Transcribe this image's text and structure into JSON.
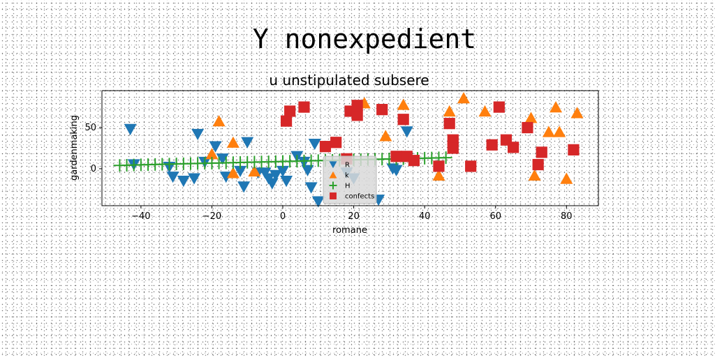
{
  "suptitle": "Y nonexpedient",
  "chart_data": {
    "type": "scatter",
    "title": "u unstipulated subsere",
    "xlabel": "romane",
    "ylabel": "gardenmaking",
    "xlim": [
      -51,
      89
    ],
    "ylim": [
      -45,
      95
    ],
    "xticks": [
      -40,
      -20,
      0,
      20,
      40,
      60,
      80
    ],
    "yticks": [
      0,
      50
    ],
    "grid": false,
    "legend_placement": "lower-center",
    "series": [
      {
        "name": "R",
        "marker": "triangle-down",
        "color": "#1f77b4",
        "x": [
          -43,
          -42,
          -32,
          -31,
          -28,
          -25,
          -24,
          -22,
          -19,
          -17,
          -16,
          -12,
          -11,
          -10,
          -7,
          -5,
          -4,
          -3,
          -2,
          0,
          1,
          4,
          6,
          7,
          8,
          9,
          10,
          18,
          20,
          27,
          31,
          32,
          35
        ],
        "y": [
          48,
          5,
          2,
          -10,
          -15,
          -12,
          42,
          8,
          27,
          12,
          -10,
          -3,
          -22,
          32,
          -5,
          -5,
          -12,
          -18,
          -8,
          -3,
          -15,
          15,
          8,
          -2,
          -23,
          30,
          -40,
          -5,
          -12,
          -38,
          0,
          -2,
          45
        ]
      },
      {
        "name": "k",
        "marker": "triangle-up",
        "color": "#ff7f0e",
        "x": [
          -20,
          -18,
          -14,
          -14,
          -8,
          23,
          29,
          34,
          44,
          47,
          51,
          57,
          70,
          71,
          75,
          77,
          78,
          80,
          83
        ],
        "y": [
          18,
          58,
          32,
          -5,
          -3,
          80,
          40,
          78,
          -8,
          70,
          86,
          70,
          62,
          -8,
          45,
          75,
          45,
          -12,
          68
        ]
      },
      {
        "name": "H",
        "marker": "plus",
        "color": "#2ca02c",
        "x": [
          -46,
          -44,
          -42,
          -40,
          -38,
          -36,
          -34,
          -32,
          -30,
          -28,
          -26,
          -24,
          -22,
          -20,
          -18,
          -16,
          -14,
          -12,
          -10,
          -8,
          -6,
          -4,
          -2,
          0,
          2,
          4,
          6,
          8,
          10,
          12,
          14,
          16,
          18,
          20,
          22,
          24,
          26,
          28,
          30,
          32,
          34,
          36,
          38,
          40,
          42,
          44,
          46
        ],
        "y": [
          4.0,
          4.2,
          4.5,
          4.7,
          5.0,
          5.2,
          5.4,
          5.6,
          5.8,
          6.0,
          6.2,
          6.4,
          6.6,
          6.8,
          7.0,
          7.2,
          7.4,
          7.6,
          7.8,
          8.0,
          8.2,
          8.4,
          8.6,
          8.8,
          9.0,
          9.2,
          9.4,
          9.6,
          9.8,
          10.0,
          10.2,
          10.4,
          10.6,
          10.8,
          11.0,
          11.2,
          11.4,
          11.6,
          11.8,
          12.0,
          12.2,
          12.4,
          12.6,
          12.8,
          13.0,
          13.2,
          13.4
        ]
      },
      {
        "name": "confects",
        "marker": "square",
        "color": "#d62728",
        "x": [
          1,
          2,
          6,
          12,
          15,
          18,
          19,
          21,
          21,
          28,
          32,
          34,
          35,
          37,
          44,
          47,
          48,
          48,
          53,
          59,
          61,
          63,
          65,
          69,
          72,
          73,
          82
        ],
        "y": [
          58,
          70,
          75,
          27,
          32,
          12,
          70,
          65,
          77,
          72,
          15,
          60,
          15,
          10,
          3,
          55,
          35,
          25,
          3,
          29,
          75,
          35,
          26,
          50,
          5,
          20,
          23
        ]
      }
    ]
  }
}
